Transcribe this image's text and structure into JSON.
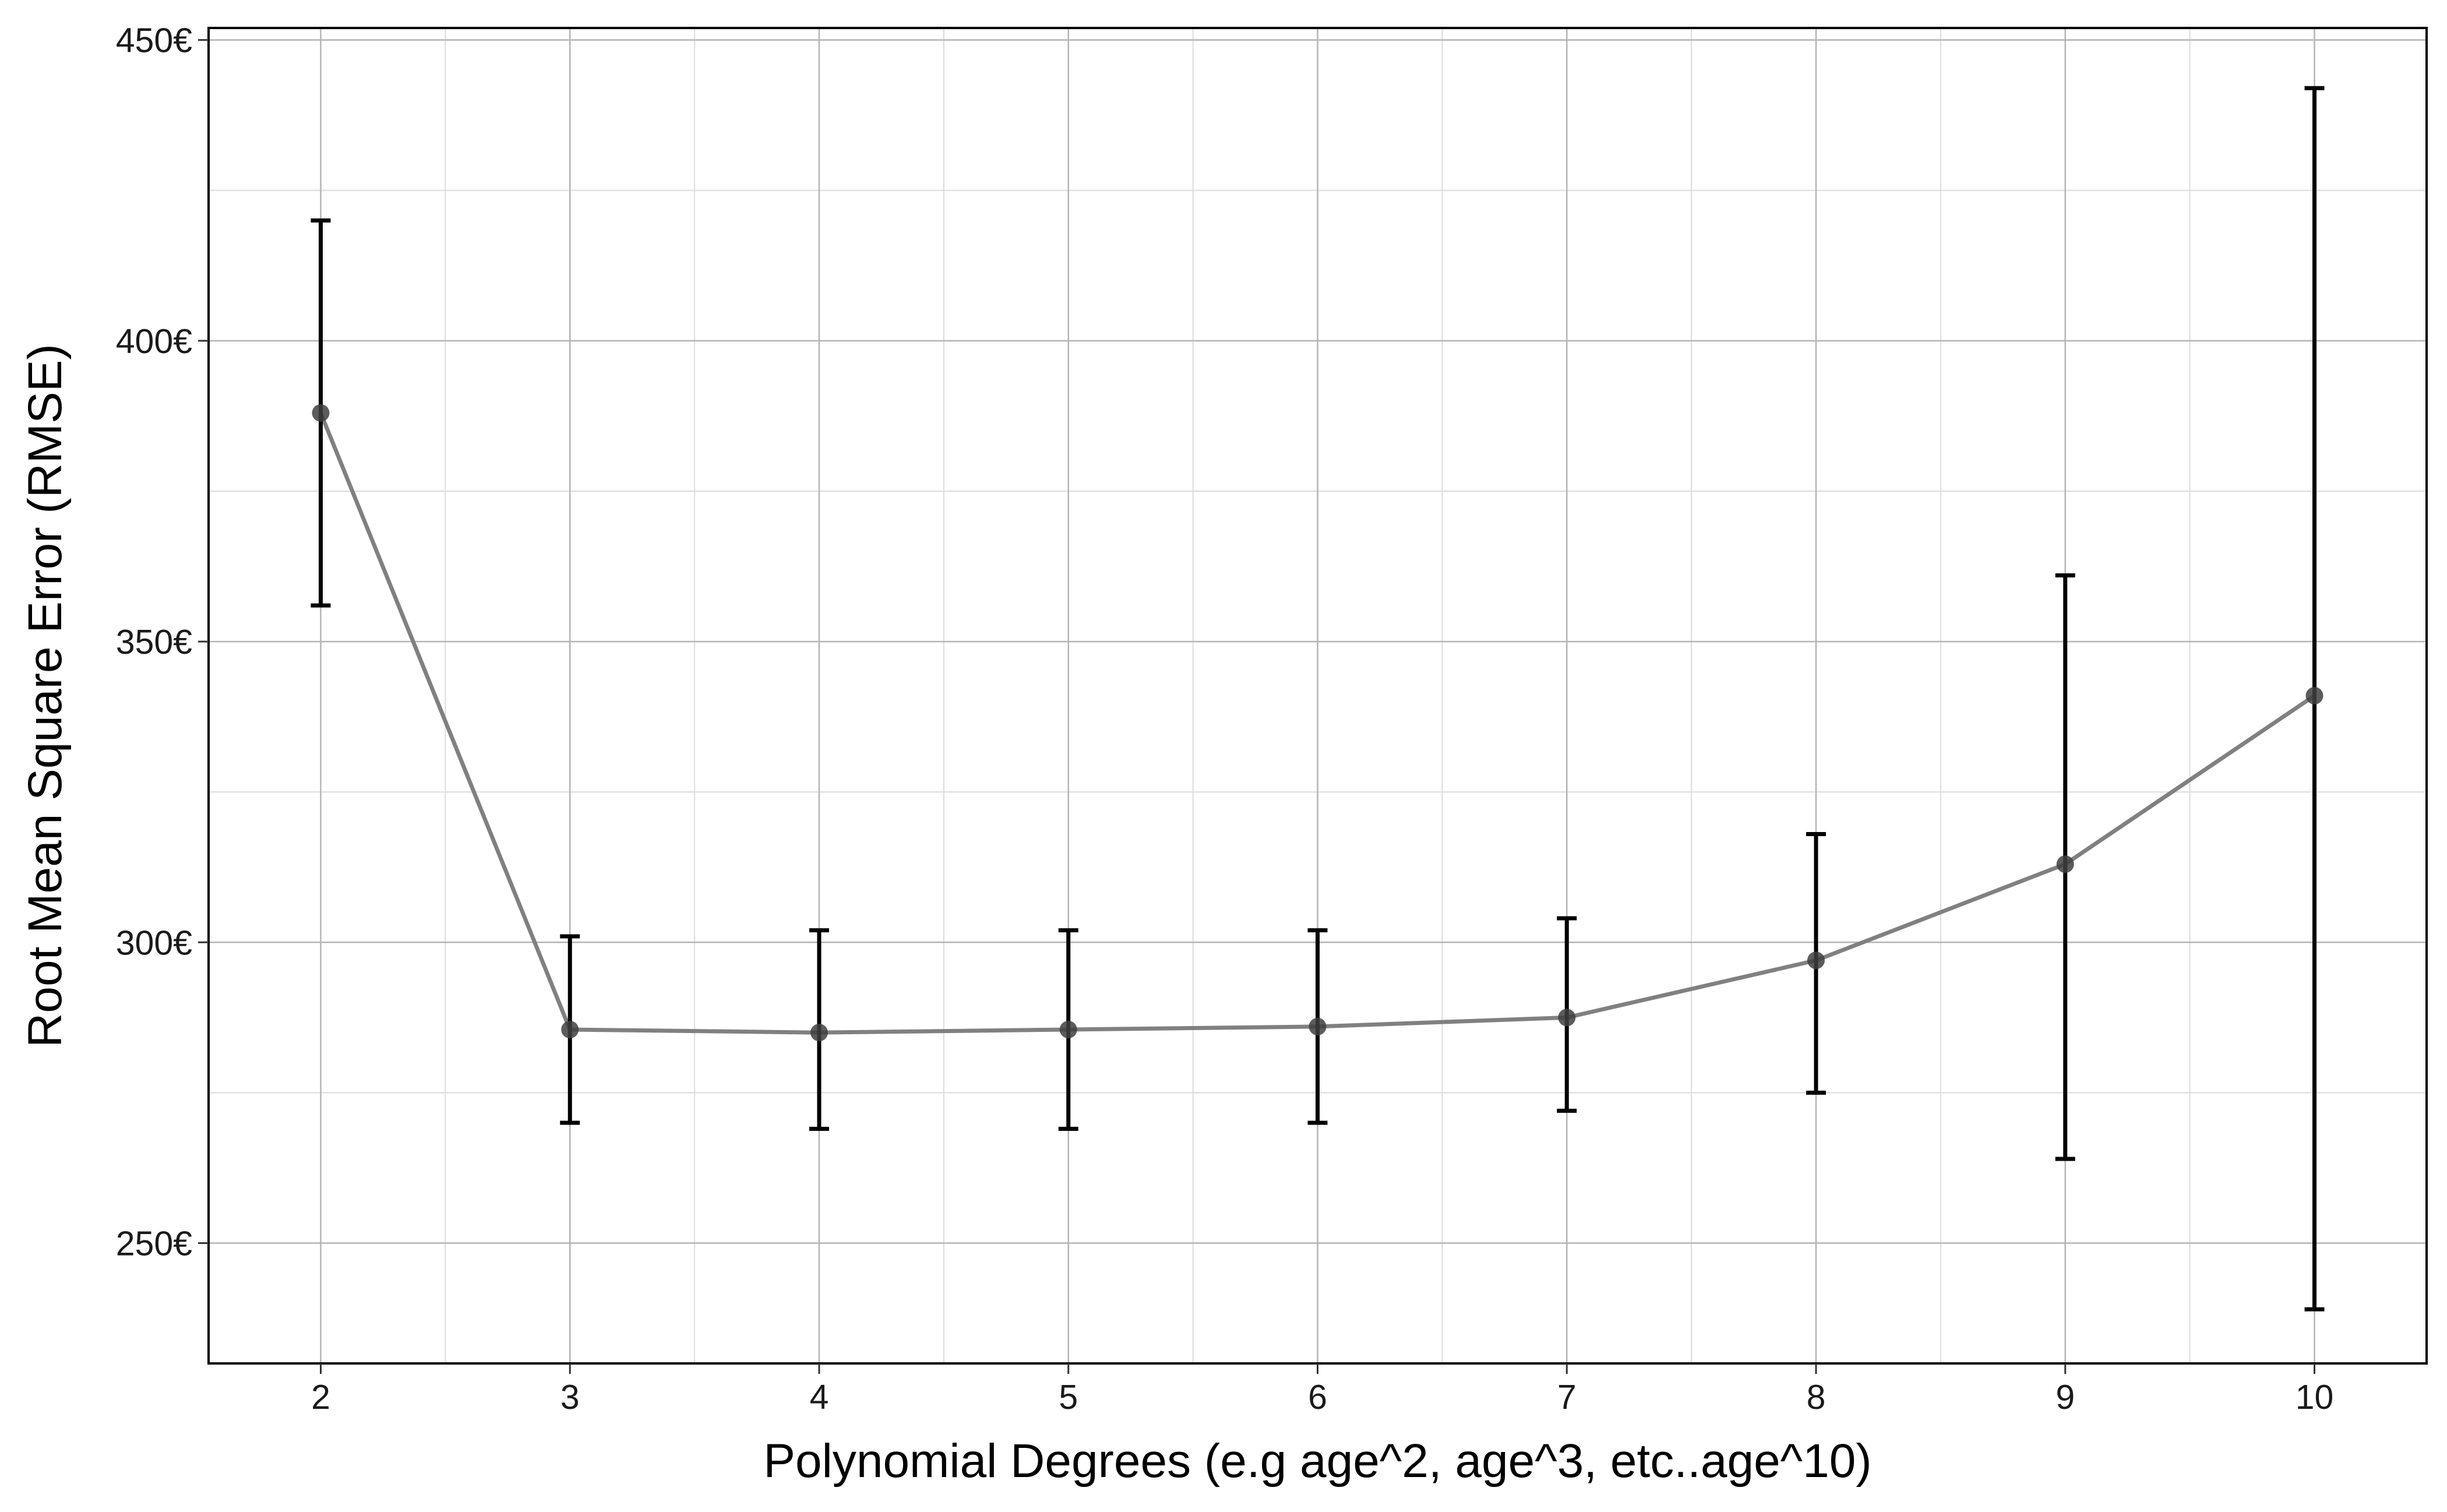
{
  "chart_data": {
    "type": "line",
    "xlabel": "Polynomial Degrees (e.g age^2, age^3, etc..age^10)",
    "ylabel": "Root Mean Square Error (RMSE)",
    "x": [
      2,
      3,
      4,
      5,
      6,
      7,
      8,
      9,
      10
    ],
    "x_tick_labels": [
      "2",
      "3",
      "4",
      "5",
      "6",
      "7",
      "8",
      "9",
      "10"
    ],
    "xlim": [
      1.55,
      10.45
    ],
    "ylim": [
      230,
      452
    ],
    "y_ticks": [
      250,
      300,
      350,
      400,
      450
    ],
    "y_tick_labels": [
      "250€",
      "300€",
      "350€",
      "400€",
      "450€"
    ],
    "series": [
      {
        "values": [
          388,
          285.5,
          285,
          285.5,
          286,
          287.5,
          297,
          313,
          341
        ],
        "error_low": [
          356,
          270,
          269,
          269,
          270,
          272,
          275,
          264,
          239
        ],
        "error_high": [
          420,
          301,
          302,
          302,
          302,
          304,
          318,
          361,
          442
        ]
      }
    ],
    "grid": true,
    "legend": "none",
    "colors": {
      "line": "#808080",
      "point": "#404040",
      "errorbar": "#000000",
      "grid_major": "#b4b4b4",
      "grid_minor": "#dcdcdc",
      "frame": "#000000"
    }
  }
}
